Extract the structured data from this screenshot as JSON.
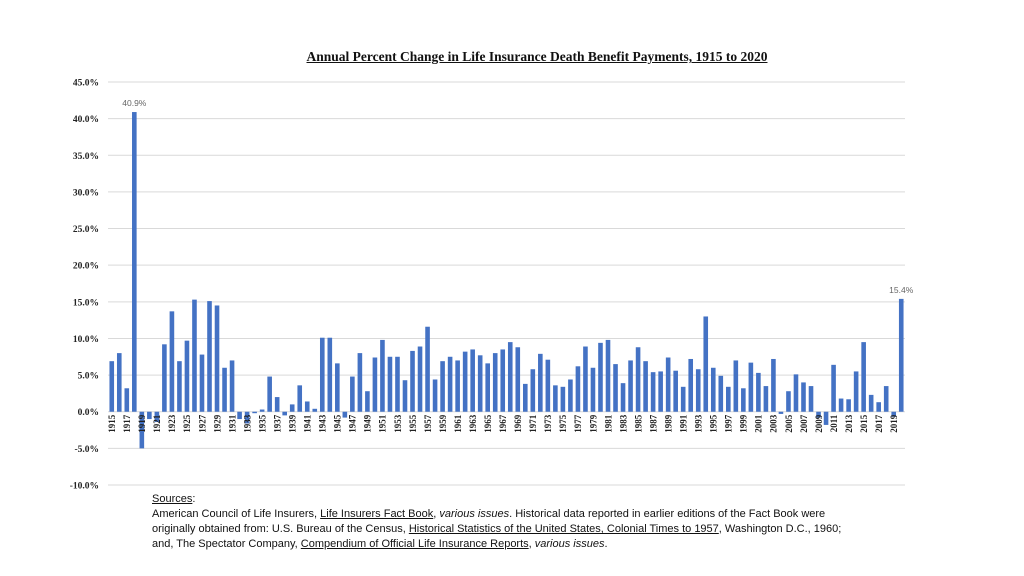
{
  "chart_data": {
    "type": "bar",
    "title": "Annual Percent Change in Life Insurance Death Benefit Payments, 1915 to 2020",
    "xlabel": "",
    "ylabel": "",
    "ylim": [
      -10,
      45
    ],
    "y_ticks": [
      "45.0%",
      "40.0%",
      "35.0%",
      "30.0%",
      "25.0%",
      "20.0%",
      "15.0%",
      "10.0%",
      "5.0%",
      "0.0%",
      "-5.0%",
      "-10.0%"
    ],
    "grid": true,
    "legend": "none",
    "bar_color": "#4472C4",
    "x_start": 1915,
    "x_end": 2020,
    "x_tick_step": 2,
    "values": [
      6.9,
      8.0,
      3.2,
      40.9,
      -5.0,
      -1.0,
      -1.4,
      9.2,
      13.7,
      6.9,
      9.7,
      15.3,
      7.8,
      15.1,
      14.5,
      6.0,
      7.0,
      -1.0,
      -1.6,
      -0.2,
      0.3,
      4.8,
      2.0,
      -0.5,
      1.0,
      3.6,
      1.4,
      0.4,
      10.1,
      10.1,
      6.6,
      -0.8,
      4.8,
      8.0,
      2.8,
      7.4,
      9.8,
      7.5,
      7.5,
      4.3,
      8.3,
      8.9,
      11.6,
      4.4,
      6.9,
      7.5,
      7.0,
      8.2,
      8.5,
      7.7,
      6.6,
      8.0,
      8.5,
      9.5,
      8.8,
      3.8,
      5.8,
      7.9,
      7.1,
      3.6,
      3.4,
      4.4,
      6.2,
      8.9,
      6.0,
      9.4,
      9.8,
      6.5,
      3.9,
      7.0,
      8.8,
      6.9,
      5.4,
      5.5,
      7.4,
      5.6,
      3.4,
      7.2,
      5.8,
      13.0,
      6.0,
      4.9,
      3.4,
      7.0,
      3.2,
      6.7,
      5.3,
      3.5,
      7.2,
      -0.3,
      2.8,
      5.1,
      4.0,
      3.5,
      -0.8,
      -1.8,
      6.4,
      1.8,
      1.7,
      5.5,
      9.5,
      2.3,
      1.3,
      3.5,
      -0.7,
      15.4
    ],
    "data_labels": [
      {
        "year": 1918,
        "text": "40.9%"
      },
      {
        "year": 2020,
        "text": "15.4%"
      }
    ]
  },
  "sources": {
    "heading": "Sources",
    "heading_colon": ":",
    "l1a": "American Council of Life Insurers, ",
    "l1b": "Life Insurers Fact Book",
    "l1c": ", ",
    "l1d": "various issues",
    "l1e": ".  Historical data reported in earlier editions of the Fact Book were",
    "l2a": "originally obtained from:  U.S. Bureau of the Census, ",
    "l2b": "Historical Statistics of the United States, Colonial Times to 1957",
    "l2c": ", Washington D.C., 1960;",
    "l3a": "and, The Spectator Company, ",
    "l3b": "Compendium of Official Life Insurance Reports",
    "l3c": ", ",
    "l3d": "various issues",
    "l3e": "."
  }
}
